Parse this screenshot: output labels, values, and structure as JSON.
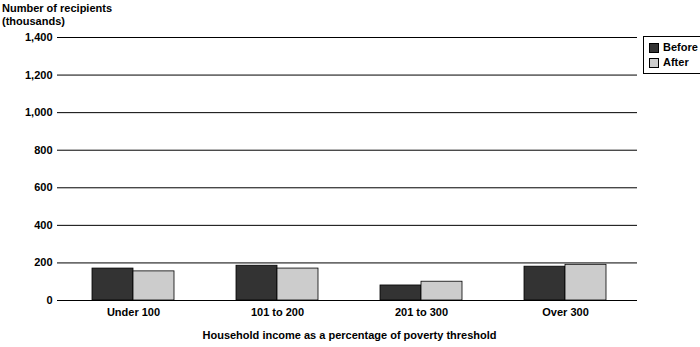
{
  "chart_data": {
    "type": "bar",
    "y_label": "Number of recipients\n(thousands)",
    "x_label": "Household income as a percentage of poverty threshold",
    "categories": [
      "Under 100",
      "101 to 200",
      "201 to 300",
      "Over 300"
    ],
    "series": [
      {
        "name": "Before",
        "color": "#333333",
        "values": [
          170,
          185,
          80,
          180
        ]
      },
      {
        "name": "After",
        "color": "#cccccc",
        "values": [
          155,
          170,
          100,
          190
        ]
      }
    ],
    "ylim": [
      0,
      1400
    ],
    "yticks": [
      0,
      200,
      400,
      600,
      800,
      {
        "value": 1000,
        "label": "1,000"
      },
      {
        "value": 1200,
        "label": "1,200"
      },
      {
        "value": 1400,
        "label": "1,400"
      }
    ],
    "grid": true,
    "legend": "top-right"
  }
}
